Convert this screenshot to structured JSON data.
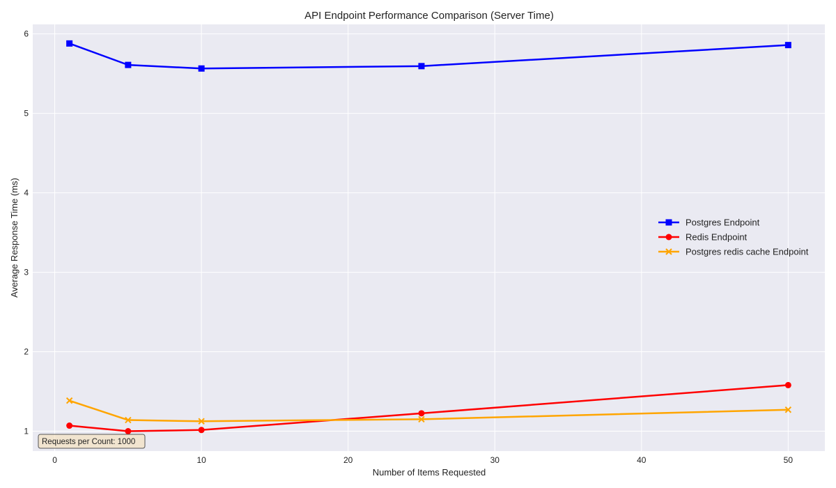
{
  "chart_data": {
    "type": "line",
    "title": "API Endpoint Performance Comparison (Server Time)",
    "xlabel": "Number of Items Requested",
    "ylabel": "Average Response Time (ms)",
    "xlim": [
      -1.5,
      52.5
    ],
    "ylim": [
      0.75,
      6.12
    ],
    "xticks": [
      0,
      10,
      20,
      30,
      40,
      50
    ],
    "yticks": [
      1,
      2,
      3,
      4,
      5,
      6
    ],
    "grid": true,
    "legend_position": "center-right",
    "background_color": "#eaeaf2",
    "grid_color": "#ffffff",
    "annotation": "Requests per Count: 1000",
    "series": [
      {
        "name": "Postgres Endpoint",
        "color": "#0000ff",
        "marker": "square",
        "x": [
          1,
          5,
          10,
          25,
          50
        ],
        "y": [
          5.88,
          5.61,
          5.565,
          5.595,
          5.86
        ]
      },
      {
        "name": "Redis Endpoint",
        "color": "#ff0000",
        "marker": "circle",
        "x": [
          1,
          5,
          10,
          25,
          50
        ],
        "y": [
          1.07,
          1.0,
          1.015,
          1.225,
          1.58
        ]
      },
      {
        "name": "Postgres redis cache Endpoint",
        "color": "#ffa500",
        "marker": "x",
        "x": [
          1,
          5,
          10,
          25,
          50
        ],
        "y": [
          1.385,
          1.14,
          1.125,
          1.15,
          1.27
        ]
      }
    ]
  }
}
